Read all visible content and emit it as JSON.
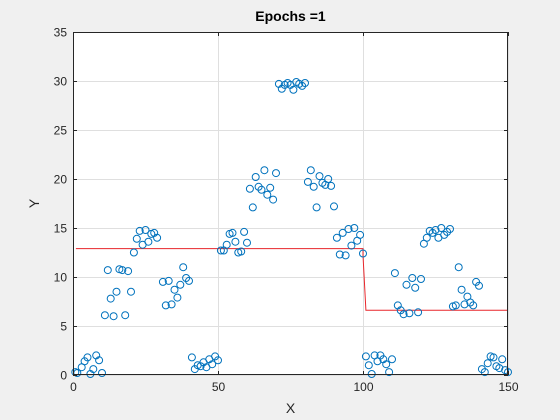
{
  "chart_data": {
    "type": "scatter",
    "title": "Epochs =1",
    "xlabel": "X",
    "ylabel": "Y",
    "xlim": [
      0,
      150
    ],
    "ylim": [
      0,
      35
    ],
    "xticks": [
      "0",
      "50",
      "100",
      "150"
    ],
    "yticks": [
      "0",
      "5",
      "10",
      "15",
      "20",
      "25",
      "30",
      "35"
    ],
    "grid": true,
    "colors": {
      "scatter": "#0072bd",
      "line": "#e8262b",
      "axes_background": "#ffffff",
      "figure_background": "#f0f0f0",
      "grid": "#dfdfdf"
    },
    "series": [
      {
        "type": "scatter",
        "points": [
          [
            0.8,
            0.3
          ],
          [
            1.5,
            0.2
          ],
          [
            3,
            0.8
          ],
          [
            4,
            1.4
          ],
          [
            5,
            1.8
          ],
          [
            6,
            0.1
          ],
          [
            7,
            0.6
          ],
          [
            8,
            2
          ],
          [
            9,
            1.5
          ],
          [
            10,
            0.2
          ],
          [
            11,
            6.1
          ],
          [
            12,
            10.7
          ],
          [
            13,
            7.8
          ],
          [
            14,
            6
          ],
          [
            15,
            8.5
          ],
          [
            16,
            10.8
          ],
          [
            17,
            10.7
          ],
          [
            18,
            6.1
          ],
          [
            19,
            10.6
          ],
          [
            20,
            8.5
          ],
          [
            21,
            12.5
          ],
          [
            22,
            13.9
          ],
          [
            23,
            14.7
          ],
          [
            24,
            13.3
          ],
          [
            25,
            14.8
          ],
          [
            26,
            13.6
          ],
          [
            27,
            14.4
          ],
          [
            28,
            14.5
          ],
          [
            29,
            14
          ],
          [
            31,
            9.5
          ],
          [
            32,
            7.1
          ],
          [
            33,
            9.6
          ],
          [
            34,
            7.2
          ],
          [
            35,
            8.7
          ],
          [
            36,
            7.9
          ],
          [
            37,
            9.2
          ],
          [
            38,
            11
          ],
          [
            39,
            9.9
          ],
          [
            40,
            9.6
          ],
          [
            41,
            1.8
          ],
          [
            42,
            0.6
          ],
          [
            43,
            1
          ],
          [
            44,
            0.9
          ],
          [
            45,
            1.3
          ],
          [
            46,
            0.8
          ],
          [
            47,
            1.6
          ],
          [
            48,
            1.1
          ],
          [
            49,
            1.9
          ],
          [
            50,
            1.5
          ],
          [
            51,
            12.7
          ],
          [
            52,
            12.7
          ],
          [
            53,
            13.3
          ],
          [
            54,
            14.4
          ],
          [
            55,
            14.5
          ],
          [
            56,
            13.6
          ],
          [
            57,
            12.5
          ],
          [
            58,
            12.6
          ],
          [
            59,
            14.6
          ],
          [
            60,
            13.5
          ],
          [
            61,
            19
          ],
          [
            62,
            17.1
          ],
          [
            63,
            20.2
          ],
          [
            64,
            19.2
          ],
          [
            65,
            18.9
          ],
          [
            66,
            20.9
          ],
          [
            67,
            18.4
          ],
          [
            68,
            19.1
          ],
          [
            69,
            17.9
          ],
          [
            70,
            20.6
          ],
          [
            71,
            29.7
          ],
          [
            72,
            29.2
          ],
          [
            73,
            29.6
          ],
          [
            74,
            29.8
          ],
          [
            75,
            29.6
          ],
          [
            76,
            29.1
          ],
          [
            77,
            29.9
          ],
          [
            78,
            29.7
          ],
          [
            79,
            29.5
          ],
          [
            80,
            29.8
          ],
          [
            81,
            19.7
          ],
          [
            82,
            20.9
          ],
          [
            83,
            19.2
          ],
          [
            84,
            17.1
          ],
          [
            85,
            20.3
          ],
          [
            86,
            19.6
          ],
          [
            87,
            19.4
          ],
          [
            88,
            20
          ],
          [
            89,
            19.3
          ],
          [
            90,
            17.2
          ],
          [
            91,
            14
          ],
          [
            92,
            12.3
          ],
          [
            93,
            14.5
          ],
          [
            94,
            12.2
          ],
          [
            95,
            14.9
          ],
          [
            96,
            13.2
          ],
          [
            97,
            15
          ],
          [
            98,
            13.7
          ],
          [
            99,
            14.3
          ],
          [
            100,
            12.4
          ],
          [
            101,
            1.9
          ],
          [
            102,
            1
          ],
          [
            103,
            0.1
          ],
          [
            104,
            2
          ],
          [
            105,
            1.4
          ],
          [
            106,
            2
          ],
          [
            107,
            1.6
          ],
          [
            108,
            1.1
          ],
          [
            109,
            0.3
          ],
          [
            110,
            1.6
          ],
          [
            111,
            10.4
          ],
          [
            112,
            7.1
          ],
          [
            113,
            6.6
          ],
          [
            114,
            6.2
          ],
          [
            115,
            9.2
          ],
          [
            116,
            6.3
          ],
          [
            117,
            9.9
          ],
          [
            118,
            8.9
          ],
          [
            119,
            6.4
          ],
          [
            120,
            9.8
          ],
          [
            121,
            13.4
          ],
          [
            122,
            14
          ],
          [
            123,
            14.7
          ],
          [
            124,
            14.5
          ],
          [
            125,
            14.8
          ],
          [
            126,
            14
          ],
          [
            127,
            15
          ],
          [
            128,
            14.3
          ],
          [
            129,
            14.6
          ],
          [
            130,
            14.9
          ],
          [
            131,
            7
          ],
          [
            132,
            7.1
          ],
          [
            133,
            11
          ],
          [
            134,
            8.7
          ],
          [
            135,
            7.2
          ],
          [
            136,
            8
          ],
          [
            137,
            7.4
          ],
          [
            138,
            7.1
          ],
          [
            139,
            9.5
          ],
          [
            140,
            9.1
          ],
          [
            141,
            0.6
          ],
          [
            142,
            0.3
          ],
          [
            143,
            1.2
          ],
          [
            144,
            1.9
          ],
          [
            145,
            1.8
          ],
          [
            146,
            0.9
          ],
          [
            147,
            0.7
          ],
          [
            148,
            1.6
          ],
          [
            149,
            0.5
          ],
          [
            150,
            0.3
          ]
        ]
      },
      {
        "type": "line",
        "points": [
          [
            1,
            12.9
          ],
          [
            100,
            12.9
          ],
          [
            100,
            12.2
          ],
          [
            101,
            6.6
          ],
          [
            150,
            6.6
          ]
        ]
      }
    ]
  }
}
